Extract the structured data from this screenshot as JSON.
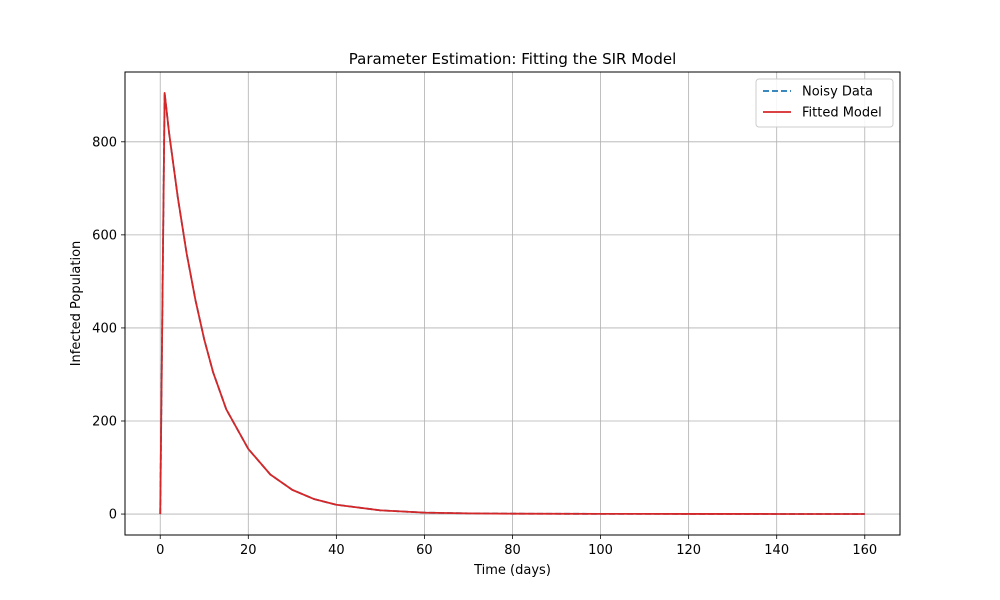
{
  "chart_data": {
    "type": "line",
    "title": "Parameter Estimation: Fitting the SIR Model",
    "xlabel": "Time (days)",
    "ylabel": "Infected Population",
    "xlim": [
      -8,
      168
    ],
    "ylim": [
      -45,
      950
    ],
    "xticks": [
      0,
      20,
      40,
      60,
      80,
      100,
      120,
      140,
      160
    ],
    "yticks": [
      0,
      200,
      400,
      600,
      800
    ],
    "grid": true,
    "legend_position": "top-right",
    "series": [
      {
        "name": "Noisy Data",
        "color": "#1f77b4",
        "style": "dashed",
        "x": [
          0,
          1,
          2,
          4,
          6,
          8,
          10,
          12,
          15,
          20,
          25,
          30,
          35,
          40,
          50,
          60,
          70,
          80,
          100,
          120,
          140,
          160
        ],
        "y": [
          0,
          905,
          820,
          680,
          560,
          460,
          375,
          305,
          225,
          140,
          85,
          52,
          32,
          20,
          8,
          3,
          1.5,
          0.8,
          0.4,
          0.3,
          0.2,
          0.2
        ]
      },
      {
        "name": "Fitted Model",
        "color": "#d62728",
        "style": "solid",
        "x": [
          0,
          1,
          2,
          4,
          6,
          8,
          10,
          12,
          15,
          20,
          25,
          30,
          35,
          40,
          50,
          60,
          70,
          80,
          100,
          120,
          140,
          160
        ],
        "y": [
          0,
          905,
          820,
          680,
          560,
          460,
          375,
          305,
          225,
          140,
          85,
          52,
          32,
          20,
          8,
          3,
          1.5,
          0.8,
          0.4,
          0.3,
          0.2,
          0.2
        ]
      }
    ]
  }
}
